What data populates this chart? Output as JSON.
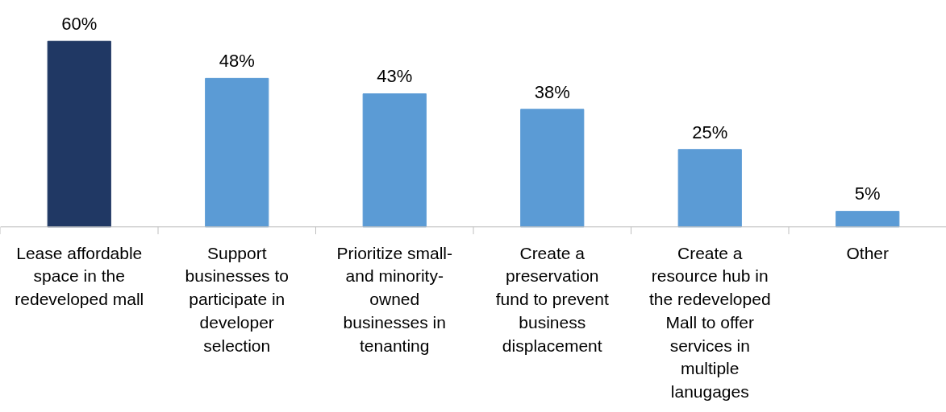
{
  "chart_data": {
    "type": "bar",
    "categories": [
      "Lease affordable\nspace in the\nredeveloped mall",
      "Support\nbusinesses to\nparticipate in\ndeveloper\nselection",
      "Prioritize small-\nand minority-\nowned\nbusinesses in\ntenanting",
      "Create a\npreservation\nfund to prevent\nbusiness\ndisplacement",
      "Create a\nresource hub in\nthe redeveloped\nMall to offer\nservices in\nmultiple\nlanugages",
      "Other"
    ],
    "values": [
      60,
      48,
      43,
      38,
      25,
      5
    ],
    "value_labels": [
      "60%",
      "48%",
      "43%",
      "38%",
      "25%",
      "5%"
    ],
    "colors": [
      "#203864",
      "#5b9bd5",
      "#5b9bd5",
      "#5b9bd5",
      "#5b9bd5",
      "#5b9bd5"
    ],
    "grid": false
  }
}
